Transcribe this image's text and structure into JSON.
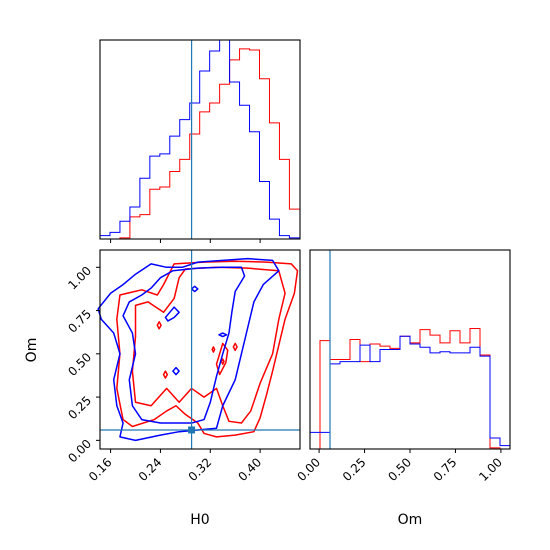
{
  "chart_data": [
    {
      "type": "histogram",
      "panel": "H0 marginal",
      "xlim": [
        0.143,
        0.464
      ],
      "truth_line": 0.29,
      "truth_color": "#1f77b4",
      "yticks_shown": false,
      "xtick_labels_shown": false,
      "series": [
        {
          "color": "#ff0000",
          "bin_edges": [
            0.143,
            0.159,
            0.175,
            0.191,
            0.207,
            0.223,
            0.239,
            0.255,
            0.271,
            0.287,
            0.303,
            0.319,
            0.335,
            0.351,
            0.367,
            0.383,
            0.399,
            0.415,
            0.431,
            0.447,
            0.464
          ],
          "values": [
            0,
            0,
            1,
            20,
            22,
            45,
            47,
            61,
            72,
            95,
            115,
            123,
            140,
            162,
            172,
            171,
            145,
            105,
            72,
            27
          ]
        },
        {
          "color": "#0000ff",
          "bin_edges": [
            0.143,
            0.159,
            0.175,
            0.191,
            0.207,
            0.223,
            0.239,
            0.255,
            0.271,
            0.287,
            0.303,
            0.319,
            0.335,
            0.351,
            0.367,
            0.383,
            0.399,
            0.415,
            0.431,
            0.447,
            0.464
          ],
          "values": [
            3,
            6,
            16,
            29,
            55,
            75,
            77,
            93,
            108,
            123,
            152,
            170,
            180,
            142,
            121,
            97,
            52,
            18,
            3,
            1
          ]
        }
      ]
    },
    {
      "type": "contour",
      "panel": "H0 vs Om joint",
      "xlabel": "H0",
      "ylabel": "Om",
      "xlim": [
        0.143,
        0.464
      ],
      "ylim": [
        -0.05,
        1.1
      ],
      "xticks": [
        "0.16",
        "0.24",
        "0.32",
        "0.40"
      ],
      "yticks": [
        "0.00",
        "0.25",
        "0.50",
        "0.75",
        "1.00"
      ],
      "truth": {
        "H0": 0.29,
        "Om": 0.06
      },
      "truth_color": "#1f77b4",
      "series": [
        {
          "color": "#ff0000",
          "contours": [
            [
              [
                0.262,
                1.02
              ],
              [
                0.31,
                1.03
              ],
              [
                0.36,
                1.035
              ],
              [
                0.41,
                1.03
              ],
              [
                0.45,
                1.02
              ],
              [
                0.46,
                0.98
              ],
              [
                0.455,
                0.85
              ],
              [
                0.44,
                0.7
              ],
              [
                0.43,
                0.55
              ],
              [
                0.42,
                0.4
              ],
              [
                0.41,
                0.26
              ],
              [
                0.4,
                0.13
              ],
              [
                0.39,
                0.05
              ],
              [
                0.36,
                0.03
              ],
              [
                0.33,
                0.02
              ],
              [
                0.31,
                0.04
              ],
              [
                0.3,
                0.1
              ],
              [
                0.28,
                0.15
              ],
              [
                0.265,
                0.2
              ],
              [
                0.25,
                0.17
              ],
              [
                0.23,
                0.12
              ],
              [
                0.195,
                0.08
              ],
              [
                0.18,
                0.12
              ],
              [
                0.17,
                0.3
              ],
              [
                0.175,
                0.5
              ],
              [
                0.17,
                0.7
              ],
              [
                0.175,
                0.84
              ],
              [
                0.21,
                0.87
              ],
              [
                0.235,
                0.84
              ],
              [
                0.245,
                0.9
              ],
              [
                0.262,
                1.02
              ]
            ],
            [
              [
                0.28,
                0.99
              ],
              [
                0.33,
                1.0
              ],
              [
                0.38,
                0.995
              ],
              [
                0.43,
                0.98
              ],
              [
                0.44,
                0.85
              ],
              [
                0.43,
                0.7
              ],
              [
                0.42,
                0.5
              ],
              [
                0.4,
                0.33
              ],
              [
                0.385,
                0.17
              ],
              [
                0.37,
                0.1
              ],
              [
                0.35,
                0.11
              ],
              [
                0.34,
                0.2
              ],
              [
                0.33,
                0.3
              ],
              [
                0.31,
                0.25
              ],
              [
                0.29,
                0.3
              ],
              [
                0.27,
                0.22
              ],
              [
                0.25,
                0.3
              ],
              [
                0.225,
                0.2
              ],
              [
                0.2,
                0.22
              ],
              [
                0.195,
                0.4
              ],
              [
                0.2,
                0.6
              ],
              [
                0.2,
                0.78
              ],
              [
                0.22,
                0.8
              ],
              [
                0.245,
                0.74
              ],
              [
                0.262,
                0.82
              ],
              [
                0.27,
                0.94
              ],
              [
                0.28,
                0.99
              ]
            ],
            [
              [
                0.335,
                0.38
              ],
              [
                0.345,
                0.45
              ],
              [
                0.348,
                0.52
              ],
              [
                0.34,
                0.56
              ],
              [
                0.335,
                0.5
              ],
              [
                0.33,
                0.44
              ],
              [
                0.335,
                0.38
              ]
            ],
            [
              [
                0.238,
                0.645
              ],
              [
                0.241,
                0.665
              ],
              [
                0.238,
                0.685
              ],
              [
                0.235,
                0.665
              ],
              [
                0.238,
                0.645
              ]
            ],
            [
              [
                0.248,
                0.36
              ],
              [
                0.251,
                0.38
              ],
              [
                0.248,
                0.4
              ],
              [
                0.245,
                0.38
              ],
              [
                0.248,
                0.36
              ]
            ],
            [
              [
                0.325,
                0.51
              ],
              [
                0.327,
                0.525
              ],
              [
                0.325,
                0.54
              ],
              [
                0.323,
                0.525
              ],
              [
                0.325,
                0.51
              ]
            ],
            [
              [
                0.34,
                0.44
              ],
              [
                0.342,
                0.455
              ],
              [
                0.34,
                0.47
              ],
              [
                0.338,
                0.455
              ],
              [
                0.34,
                0.44
              ]
            ],
            [
              [
                0.36,
                0.52
              ],
              [
                0.363,
                0.54
              ],
              [
                0.36,
                0.56
              ],
              [
                0.357,
                0.54
              ],
              [
                0.36,
                0.52
              ]
            ]
          ]
        },
        {
          "color": "#0000ff",
          "contours": [
            [
              [
                0.25,
                1.0
              ],
              [
                0.275,
                1.0
              ],
              [
                0.3,
                1.03
              ],
              [
                0.34,
                1.04
              ],
              [
                0.38,
                1.05
              ],
              [
                0.42,
                1.04
              ],
              [
                0.43,
                0.98
              ],
              [
                0.405,
                0.9
              ],
              [
                0.39,
                0.8
              ],
              [
                0.38,
                0.65
              ],
              [
                0.37,
                0.5
              ],
              [
                0.36,
                0.35
              ],
              [
                0.34,
                0.2
              ],
              [
                0.33,
                0.07
              ],
              [
                0.3,
                0.06
              ],
              [
                0.27,
                0.05
              ],
              [
                0.24,
                0.03
              ],
              [
                0.2,
                0.0
              ],
              [
                0.175,
                0.02
              ],
              [
                0.18,
                0.1
              ],
              [
                0.17,
                0.2
              ],
              [
                0.165,
                0.35
              ],
              [
                0.175,
                0.5
              ],
              [
                0.165,
                0.62
              ],
              [
                0.145,
                0.7
              ],
              [
                0.14,
                0.76
              ],
              [
                0.16,
                0.85
              ],
              [
                0.18,
                0.9
              ],
              [
                0.2,
                0.96
              ],
              [
                0.225,
                1.02
              ],
              [
                0.25,
                1.0
              ]
            ],
            [
              [
                0.26,
                0.98
              ],
              [
                0.3,
                0.995
              ],
              [
                0.34,
                1.0
              ],
              [
                0.37,
                1.0
              ],
              [
                0.375,
                0.95
              ],
              [
                0.36,
                0.86
              ],
              [
                0.355,
                0.75
              ],
              [
                0.35,
                0.62
              ],
              [
                0.34,
                0.5
              ],
              [
                0.33,
                0.37
              ],
              [
                0.32,
                0.22
              ],
              [
                0.31,
                0.12
              ],
              [
                0.29,
                0.1
              ],
              [
                0.27,
                0.1
              ],
              [
                0.24,
                0.1
              ],
              [
                0.21,
                0.12
              ],
              [
                0.195,
                0.2
              ],
              [
                0.19,
                0.35
              ],
              [
                0.2,
                0.5
              ],
              [
                0.195,
                0.62
              ],
              [
                0.18,
                0.72
              ],
              [
                0.19,
                0.8
              ],
              [
                0.21,
                0.84
              ],
              [
                0.225,
                0.88
              ],
              [
                0.24,
                0.94
              ],
              [
                0.26,
                0.98
              ]
            ],
            [
              [
                0.252,
                0.69
              ],
              [
                0.262,
                0.71
              ],
              [
                0.27,
                0.74
              ],
              [
                0.262,
                0.77
              ],
              [
                0.255,
                0.74
              ],
              [
                0.248,
                0.71
              ],
              [
                0.252,
                0.69
              ]
            ],
            [
              [
                0.295,
                0.86
              ],
              [
                0.3,
                0.875
              ],
              [
                0.295,
                0.89
              ],
              [
                0.29,
                0.875
              ],
              [
                0.295,
                0.86
              ]
            ],
            [
              [
                0.265,
                0.38
              ],
              [
                0.27,
                0.4
              ],
              [
                0.265,
                0.42
              ],
              [
                0.26,
                0.4
              ],
              [
                0.265,
                0.38
              ]
            ],
            [
              [
                0.34,
                0.6
              ],
              [
                0.346,
                0.61
              ],
              [
                0.34,
                0.62
              ],
              [
                0.334,
                0.61
              ],
              [
                0.34,
                0.6
              ]
            ]
          ]
        }
      ]
    },
    {
      "type": "histogram",
      "panel": "Om marginal",
      "xlabel": "Om",
      "xlim": [
        -0.05,
        1.05
      ],
      "xticks": [
        "0.00",
        "0.25",
        "0.50",
        "0.75",
        "1.00"
      ],
      "truth_line": 0.06,
      "truth_color": "#1f77b4",
      "yticks_shown": false,
      "series": [
        {
          "color": "#ff0000",
          "bin_edges": [
            -0.05,
            0.005,
            0.06,
            0.115,
            0.17,
            0.225,
            0.28,
            0.335,
            0.39,
            0.445,
            0.5,
            0.555,
            0.61,
            0.665,
            0.72,
            0.775,
            0.83,
            0.885,
            0.94,
            0.995,
            1.05
          ],
          "values": [
            0,
            98,
            81,
            81,
            99,
            79,
            95,
            93,
            91,
            102,
            96,
            108,
            103,
            96,
            107,
            96,
            109,
            85,
            1,
            0
          ]
        },
        {
          "color": "#0000ff",
          "bin_edges": [
            -0.05,
            0.005,
            0.06,
            0.115,
            0.17,
            0.225,
            0.28,
            0.335,
            0.39,
            0.445,
            0.5,
            0.555,
            0.61,
            0.665,
            0.72,
            0.775,
            0.83,
            0.885,
            0.94,
            0.995,
            1.05
          ],
          "values": [
            15,
            15,
            77,
            79,
            79,
            94,
            79,
            90,
            90,
            102,
            95,
            92,
            87,
            88,
            87,
            87,
            92,
            84,
            10,
            3
          ]
        }
      ]
    }
  ]
}
